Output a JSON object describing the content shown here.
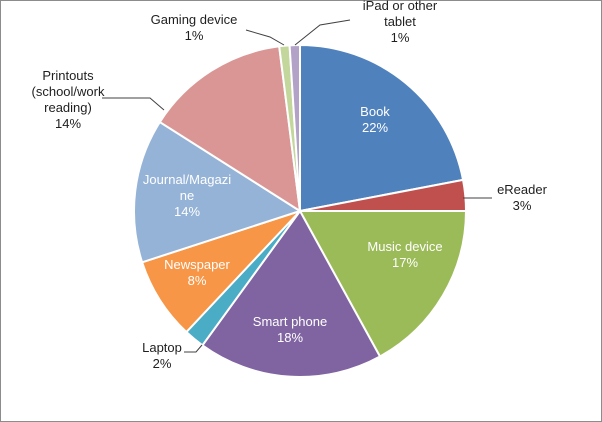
{
  "chart_data": {
    "type": "pie",
    "title": "",
    "legend": "none",
    "slices": [
      {
        "name": "Book",
        "value": 22,
        "label": [
          "Book",
          "22%"
        ],
        "color": "#4f81bd",
        "label_inside": true
      },
      {
        "name": "eReader",
        "value": 3,
        "label": [
          "eReader",
          "3%"
        ],
        "color": "#c0504d",
        "label_inside": false
      },
      {
        "name": "Music device",
        "value": 17,
        "label": [
          "Music device",
          "17%"
        ],
        "color": "#9bbb59",
        "label_inside": true
      },
      {
        "name": "Smart phone",
        "value": 18,
        "label": [
          "Smart phone",
          "18%"
        ],
        "color": "#8064a2",
        "label_inside": true
      },
      {
        "name": "Laptop",
        "value": 2,
        "label": [
          "Laptop",
          "2%"
        ],
        "color": "#4bacc6",
        "label_inside": false
      },
      {
        "name": "Newspaper",
        "value": 8,
        "label": [
          "Newspaper",
          "8%"
        ],
        "color": "#f79646",
        "label_inside": true
      },
      {
        "name": "Journal/Magazine",
        "value": 14,
        "label": [
          "Journal/Magazi",
          "ne",
          "14%"
        ],
        "color": "#95b3d7",
        "label_inside": true
      },
      {
        "name": "Printouts (school/work reading)",
        "value": 14,
        "label": [
          "Printouts",
          "(school/work",
          "reading)",
          "14%"
        ],
        "color": "#d99694",
        "label_inside": false
      },
      {
        "name": "Gaming device",
        "value": 1,
        "label": [
          "Gaming device",
          "1%"
        ],
        "color": "#c3d69b",
        "label_inside": false
      },
      {
        "name": "iPad or other tablet",
        "value": 1,
        "label": [
          "iPad or other",
          "tablet",
          "1%"
        ],
        "color": "#b2a2c7",
        "label_inside": false
      }
    ]
  }
}
